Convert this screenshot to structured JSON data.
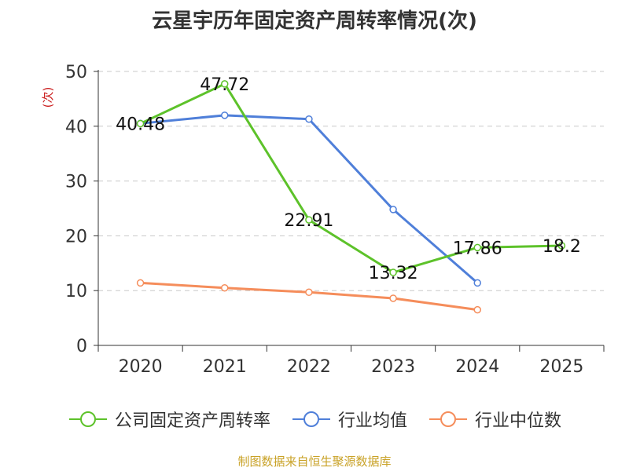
{
  "chart_data": {
    "type": "line",
    "title": "云星宇历年固定资产周转率情况(次)",
    "ylabel": "(次)",
    "xlabel": "",
    "categories": [
      "2020",
      "2021",
      "2022",
      "2023",
      "2024",
      "2025"
    ],
    "ylim": [
      0,
      50
    ],
    "yticks": [
      0,
      10,
      20,
      30,
      40,
      50
    ],
    "grid": true,
    "legend_position": "bottom",
    "series": [
      {
        "name": "公司固定资产周转率",
        "color": "#5dc22a",
        "values": [
          40.48,
          47.72,
          22.91,
          13.32,
          17.86,
          18.2
        ],
        "labels": [
          "40.48",
          "47.72",
          "22.91",
          "13.32",
          "17.86",
          "18.2"
        ]
      },
      {
        "name": "行业均值",
        "color": "#4f7fd9",
        "values": [
          40.5,
          42.0,
          41.3,
          24.8,
          11.4,
          null
        ]
      },
      {
        "name": "行业中位数",
        "color": "#f58d5b",
        "values": [
          11.4,
          10.5,
          9.7,
          8.6,
          6.5,
          null
        ]
      }
    ]
  },
  "source": "制图数据来自恒生聚源数据库"
}
